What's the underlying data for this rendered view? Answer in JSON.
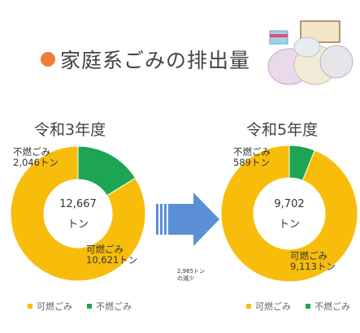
{
  "title": "家庭系ごみの排出量",
  "colors": {
    "burnable": "#f8bd0a",
    "non_burnable": "#1da553",
    "accent": "#f07c3a",
    "arrow": "#5b8fd6"
  },
  "change_note": {
    "line1": "2,965トン",
    "line2": "の減少"
  },
  "chart_data": [
    {
      "type": "pie",
      "donut": true,
      "title": "令和3年度",
      "categories": [
        "可燃ごみ",
        "不燃ごみ"
      ],
      "values": [
        10621,
        2046
      ],
      "total_line1": "12,667",
      "total_line2": "トン",
      "labels": {
        "burnable_name": "可燃ごみ",
        "burnable_value": "10,621トン",
        "nonburnable_name": "不燃ごみ",
        "nonburnable_value": "2,046トン"
      },
      "legend": [
        "可燃ごみ",
        "不燃ごみ"
      ],
      "legend_position": "bottom"
    },
    {
      "type": "pie",
      "donut": true,
      "title": "令和5年度",
      "categories": [
        "可燃ごみ",
        "不燃ごみ"
      ],
      "values": [
        9113,
        589
      ],
      "total_line1": "9,702",
      "total_line2": "トン",
      "labels": {
        "burnable_name": "可燃ごみ",
        "burnable_value": "9,113トン",
        "nonburnable_name": "不燃ごみ",
        "nonburnable_value": "589トン"
      },
      "legend": [
        "可燃ごみ",
        "不燃ごみ"
      ],
      "legend_position": "bottom"
    }
  ]
}
